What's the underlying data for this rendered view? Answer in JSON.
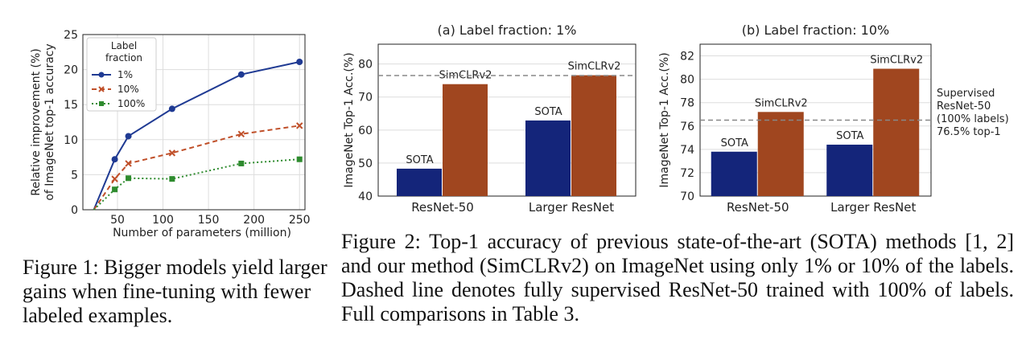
{
  "chart_data": [
    {
      "type": "line",
      "title": "",
      "xlabel": "Number of parameters (million)",
      "ylabel": "Relative improvement (%) of ImageNet top-1 accuracy",
      "xlim": [
        12,
        256
      ],
      "ylim": [
        0,
        25
      ],
      "xticks": [
        50,
        100,
        150,
        200,
        250
      ],
      "yticks": [
        0,
        5,
        10,
        15,
        20,
        25
      ],
      "grid": true,
      "legend": {
        "title": "Label fraction",
        "position": "top-left"
      },
      "series": [
        {
          "name": "1%",
          "color": "#1f3a93",
          "marker": "circle",
          "dash": "solid",
          "x": [
            24,
            47,
            62,
            110,
            186,
            250
          ],
          "y": [
            0.0,
            7.2,
            10.5,
            14.4,
            19.3,
            21.1
          ]
        },
        {
          "name": "10%",
          "color": "#c0502a",
          "marker": "x",
          "dash": "dashed",
          "x": [
            24,
            47,
            62,
            110,
            186,
            250
          ],
          "y": [
            0.0,
            4.4,
            6.6,
            8.1,
            10.8,
            12.0
          ]
        },
        {
          "name": "100%",
          "color": "#2e8b2e",
          "marker": "square",
          "dash": "dotted",
          "x": [
            24,
            47,
            62,
            110,
            186,
            250
          ],
          "y": [
            0.0,
            2.9,
            4.5,
            4.4,
            6.6,
            7.2
          ]
        }
      ]
    },
    {
      "type": "bar",
      "title": "(a) Label fraction: 1%",
      "ylabel": "ImageNet Top-1 Acc.(%)",
      "categories": [
        "ResNet-50",
        "Larger ResNet"
      ],
      "ylim": [
        40,
        86
      ],
      "yticks": [
        40,
        50,
        60,
        70,
        80
      ],
      "grid": true,
      "series": [
        {
          "name": "SOTA",
          "color": "#14257a",
          "values": [
            48.3,
            62.9
          ]
        },
        {
          "name": "SimCLRv2",
          "color": "#a0461f",
          "values": [
            73.9,
            76.6
          ]
        }
      ],
      "reference_line": 76.5
    },
    {
      "type": "bar",
      "title": "(b) Label fraction: 10%",
      "ylabel": "ImageNet Top-1 Acc.(%)",
      "categories": [
        "ResNet-50",
        "Larger ResNet"
      ],
      "ylim": [
        70,
        83
      ],
      "yticks": [
        70,
        72,
        74,
        76,
        78,
        80,
        82
      ],
      "grid": true,
      "series": [
        {
          "name": "SOTA",
          "color": "#14257a",
          "values": [
            73.8,
            74.4
          ]
        },
        {
          "name": "SimCLRv2",
          "color": "#a0461f",
          "values": [
            77.2,
            80.9
          ]
        }
      ],
      "reference_line": 76.5,
      "reference_label": [
        "Supervised",
        "ResNet-50",
        "(100% labels)",
        "76.5% top-1"
      ]
    }
  ],
  "captions": {
    "figure1": "Figure 1:  Bigger models yield larger gains when fine-tuning with fewer labeled examples.",
    "figure2": "Figure 2:  Top-1 accuracy of previous state-of-the-art (SOTA) methods [1, 2] and our method (SimCLRv2) on ImageNet using only 1% or 10% of the labels. Dashed line denotes fully supervised ResNet-50 trained with 100% of labels. Full comparisons in Table  3."
  }
}
